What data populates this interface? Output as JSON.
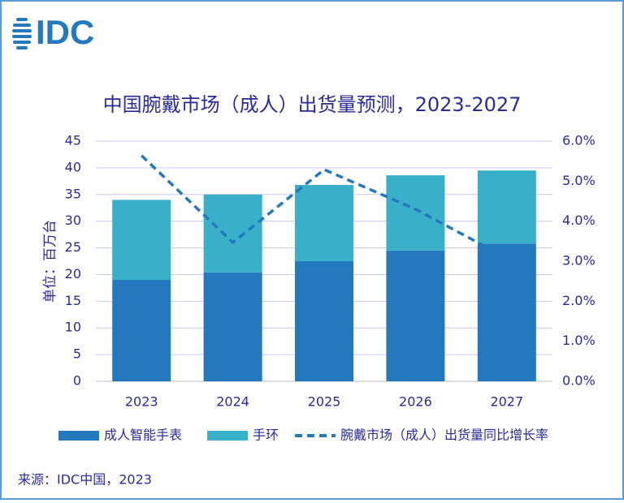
{
  "logo": "IDC",
  "chart_data": {
    "type": "bar",
    "stacked": true,
    "title": "中国腕戴市场（成人）出货量预测，2023-2027",
    "y_label": "单位：百万台",
    "source": "来源：IDC中国，2023",
    "categories": [
      "2023",
      "2024",
      "2025",
      "2026",
      "2027"
    ],
    "series": [
      {
        "name": "成人智能手表",
        "type": "bar",
        "color": "#2478be",
        "values": [
          19,
          20.4,
          22.5,
          24.5,
          25.8
        ]
      },
      {
        "name": "手环",
        "type": "bar",
        "color": "#3aafc9",
        "values": [
          15,
          14.6,
          14.3,
          14.1,
          13.7
        ]
      },
      {
        "name": "腕戴市场（成人）出货量同比增长率",
        "type": "line",
        "axis": "y2",
        "dashed": true,
        "color": "#2478be",
        "values": [
          5.64,
          3.47,
          5.29,
          4.3,
          3.08
        ]
      }
    ],
    "ylim": [
      0,
      45
    ],
    "yticks": [
      0,
      5,
      10,
      15,
      20,
      25,
      30,
      35,
      40,
      45
    ],
    "y2lim": [
      0,
      6
    ],
    "y2ticks": [
      {
        "value": 0,
        "label": "0.0%"
      },
      {
        "value": 1,
        "label": "1.0%"
      },
      {
        "value": 2,
        "label": "2.0%"
      },
      {
        "value": 3,
        "label": "3.0%"
      },
      {
        "value": 4,
        "label": "4.0%"
      },
      {
        "value": 5,
        "label": "5.0%"
      },
      {
        "value": 6,
        "label": "6.0%"
      }
    ],
    "grid": true,
    "legend": "bottom"
  }
}
